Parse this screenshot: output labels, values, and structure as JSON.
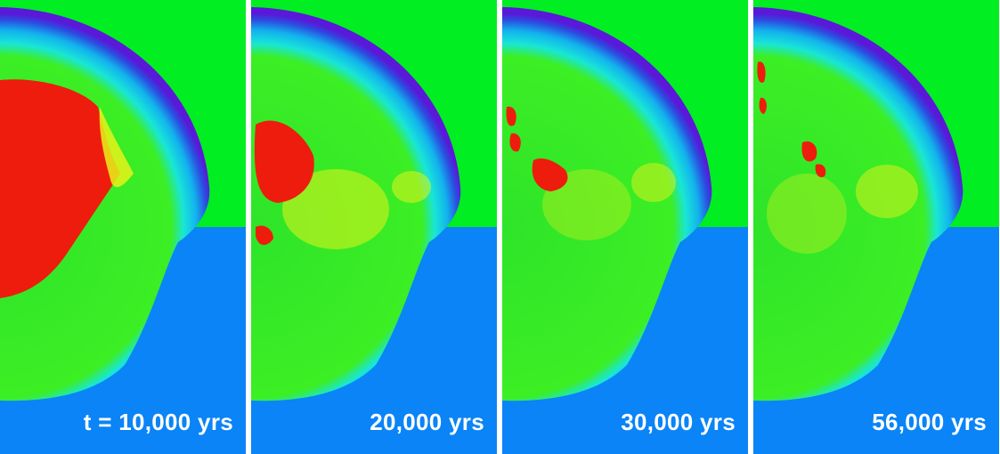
{
  "panels": [
    {
      "label": "t = 10,000 yrs"
    },
    {
      "label": "20,000 yrs"
    },
    {
      "label": "30,000 yrs"
    },
    {
      "label": "56,000 yrs"
    }
  ],
  "colors": {
    "ambient_upper": "#00ee22",
    "ambient_lower": "#0a84f6",
    "shell_dark": "#5a18d8",
    "shell_cyan": "#11e6f2",
    "interior_green": "#36ee22",
    "hot_yellow": "#e6f21a",
    "dense_red": "#ee1c0c",
    "divider": "#ffffff"
  }
}
